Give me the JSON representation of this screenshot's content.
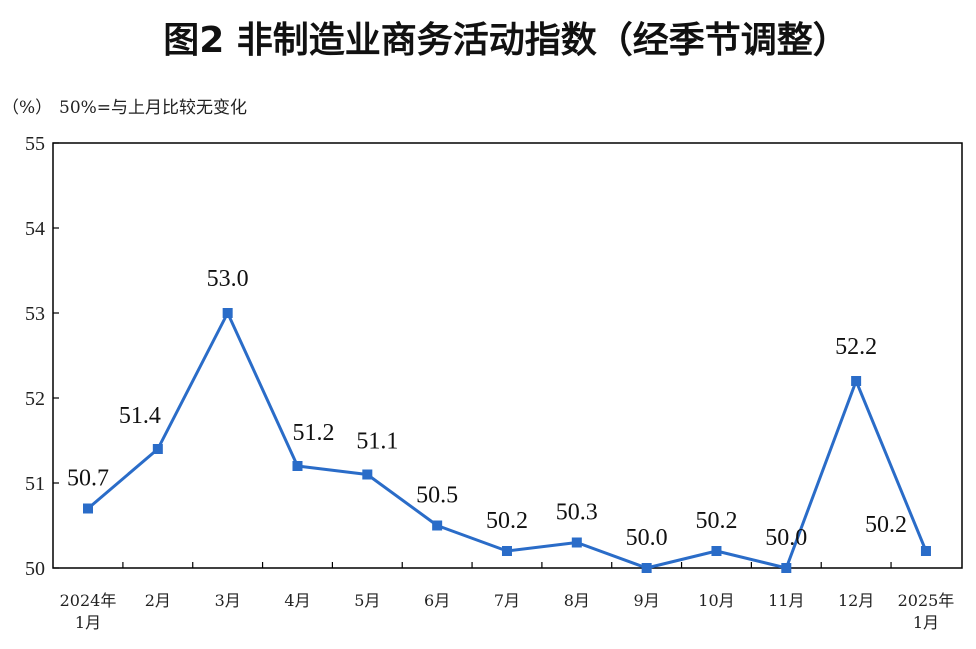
{
  "title": "图2  非制造业商务活动指数（经季节调整）",
  "colors": {
    "series": "#2a6cc8",
    "axis": "#000000",
    "text": "#222222"
  },
  "chart_data": {
    "type": "line",
    "unit_label": "（%）",
    "note": "50%=与上月比较无变化",
    "ylim": [
      50,
      55
    ],
    "yticks": [
      "50",
      "51",
      "52",
      "53",
      "54",
      "55"
    ],
    "grid": false,
    "categories": [
      [
        "2024年",
        "1月"
      ],
      [
        "2月"
      ],
      [
        "3月"
      ],
      [
        "4月"
      ],
      [
        "5月"
      ],
      [
        "6月"
      ],
      [
        "7月"
      ],
      [
        "8月"
      ],
      [
        "9月"
      ],
      [
        "10月"
      ],
      [
        "11月"
      ],
      [
        "12月"
      ],
      [
        "2025年",
        "1月"
      ]
    ],
    "series": [
      {
        "values": [
          50.7,
          51.4,
          53.0,
          51.2,
          51.1,
          50.5,
          50.2,
          50.3,
          50.0,
          50.2,
          50.0,
          52.2,
          50.2
        ],
        "labels": [
          "50.7",
          "51.4",
          "53.0",
          "51.2",
          "51.1",
          "50.5",
          "50.2",
          "50.3",
          "50.0",
          "50.2",
          "50.0",
          "52.2",
          "50.2"
        ]
      }
    ]
  }
}
